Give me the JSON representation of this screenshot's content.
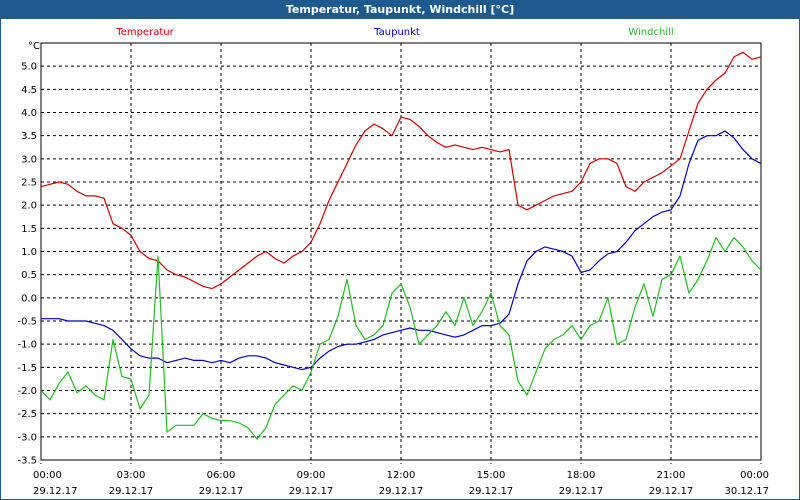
{
  "window": {
    "title": "Temperatur, Taupunkt, Windchill [°C]"
  },
  "chart_data": {
    "type": "line",
    "ylabel": "°C",
    "ylim": [
      -3.5,
      5.5
    ],
    "yticks": [
      "-3.5",
      "-3.0",
      "-2.5",
      "-2.0",
      "-1.5",
      "-1.0",
      "-0.5",
      "0.0",
      "0.5",
      "1.0",
      "1.5",
      "2.0",
      "2.5",
      "3.0",
      "3.5",
      "4.0",
      "4.5",
      "5.0"
    ],
    "xlim": [
      0,
      24
    ],
    "xticks": [
      {
        "time": "00:00",
        "date": "29.12.17"
      },
      {
        "time": "03:00",
        "date": "29.12.17"
      },
      {
        "time": "06:00",
        "date": "29.12.17"
      },
      {
        "time": "09:00",
        "date": "29.12.17"
      },
      {
        "time": "12:00",
        "date": "29.12.17"
      },
      {
        "time": "15:00",
        "date": "29.12.17"
      },
      {
        "time": "18:00",
        "date": "29.12.17"
      },
      {
        "time": "21:00",
        "date": "29.12.17"
      },
      {
        "time": "00:00",
        "date": "30.12.17"
      }
    ],
    "grid": true,
    "series": [
      {
        "name": "Temperatur",
        "color": "#cc0000",
        "x": [
          0,
          0.3,
          0.6,
          0.9,
          1.2,
          1.5,
          1.8,
          2.1,
          2.4,
          2.7,
          3.0,
          3.3,
          3.6,
          3.9,
          4.2,
          4.5,
          4.8,
          5.1,
          5.4,
          5.7,
          6.0,
          6.3,
          6.6,
          6.9,
          7.2,
          7.5,
          7.8,
          8.1,
          8.4,
          8.7,
          9.0,
          9.3,
          9.6,
          9.9,
          10.2,
          10.5,
          10.8,
          11.1,
          11.4,
          11.7,
          12.0,
          12.3,
          12.6,
          12.9,
          13.2,
          13.5,
          13.8,
          14.1,
          14.4,
          14.7,
          15.0,
          15.3,
          15.6,
          15.9,
          16.2,
          16.5,
          16.8,
          17.1,
          17.4,
          17.7,
          18.0,
          18.3,
          18.6,
          18.9,
          19.2,
          19.5,
          19.8,
          20.1,
          20.4,
          20.7,
          21.0,
          21.3,
          21.6,
          21.9,
          22.2,
          22.5,
          22.8,
          23.1,
          23.4,
          23.7,
          24.0
        ],
        "y": [
          2.4,
          2.45,
          2.5,
          2.45,
          2.3,
          2.2,
          2.2,
          2.15,
          1.6,
          1.5,
          1.35,
          1.0,
          0.85,
          0.8,
          0.6,
          0.5,
          0.45,
          0.35,
          0.25,
          0.2,
          0.3,
          0.45,
          0.6,
          0.75,
          0.9,
          1.0,
          0.85,
          0.75,
          0.9,
          1.0,
          1.2,
          1.6,
          2.1,
          2.5,
          2.9,
          3.3,
          3.6,
          3.75,
          3.65,
          3.5,
          3.9,
          3.85,
          3.7,
          3.5,
          3.35,
          3.25,
          3.3,
          3.25,
          3.2,
          3.25,
          3.2,
          3.15,
          3.2,
          2.0,
          1.9,
          2.0,
          2.1,
          2.2,
          2.25,
          2.3,
          2.5,
          2.9,
          3.0,
          3.0,
          2.9,
          2.4,
          2.3,
          2.5,
          2.6,
          2.7,
          2.85,
          3.0,
          3.6,
          4.2,
          4.5,
          4.7,
          4.85,
          5.2,
          5.3,
          5.15,
          5.2
        ]
      },
      {
        "name": "Taupunkt",
        "color": "#0000bb",
        "x": [
          0,
          0.3,
          0.6,
          0.9,
          1.2,
          1.5,
          1.8,
          2.1,
          2.4,
          2.7,
          3.0,
          3.3,
          3.6,
          3.9,
          4.2,
          4.5,
          4.8,
          5.1,
          5.4,
          5.7,
          6.0,
          6.3,
          6.6,
          6.9,
          7.2,
          7.5,
          7.8,
          8.1,
          8.4,
          8.7,
          9.0,
          9.3,
          9.6,
          9.9,
          10.2,
          10.5,
          10.8,
          11.1,
          11.4,
          11.7,
          12.0,
          12.3,
          12.6,
          12.9,
          13.2,
          13.5,
          13.8,
          14.1,
          14.4,
          14.7,
          15.0,
          15.3,
          15.6,
          15.9,
          16.2,
          16.5,
          16.8,
          17.1,
          17.4,
          17.7,
          18.0,
          18.3,
          18.6,
          18.9,
          19.2,
          19.5,
          19.8,
          20.1,
          20.4,
          20.7,
          21.0,
          21.3,
          21.6,
          21.9,
          22.2,
          22.5,
          22.8,
          23.1,
          23.4,
          23.7,
          24.0
        ],
        "y": [
          -0.45,
          -0.45,
          -0.45,
          -0.5,
          -0.5,
          -0.5,
          -0.55,
          -0.6,
          -0.7,
          -0.9,
          -1.1,
          -1.25,
          -1.3,
          -1.3,
          -1.4,
          -1.35,
          -1.3,
          -1.35,
          -1.35,
          -1.4,
          -1.35,
          -1.4,
          -1.3,
          -1.25,
          -1.25,
          -1.3,
          -1.4,
          -1.45,
          -1.5,
          -1.55,
          -1.5,
          -1.3,
          -1.15,
          -1.05,
          -1.0,
          -1.0,
          -0.95,
          -0.9,
          -0.8,
          -0.75,
          -0.7,
          -0.65,
          -0.7,
          -0.7,
          -0.75,
          -0.8,
          -0.85,
          -0.8,
          -0.7,
          -0.6,
          -0.6,
          -0.55,
          -0.35,
          0.3,
          0.8,
          1.0,
          1.1,
          1.05,
          1.0,
          0.9,
          0.55,
          0.6,
          0.8,
          0.95,
          1.0,
          1.2,
          1.45,
          1.6,
          1.75,
          1.85,
          1.9,
          2.2,
          2.9,
          3.4,
          3.5,
          3.5,
          3.6,
          3.45,
          3.2,
          3.0,
          2.9
        ]
      },
      {
        "name": "Windchill",
        "color": "#22bb22",
        "x": [
          0,
          0.3,
          0.6,
          0.9,
          1.2,
          1.5,
          1.8,
          2.1,
          2.4,
          2.7,
          3.0,
          3.3,
          3.6,
          3.9,
          4.2,
          4.5,
          4.8,
          5.1,
          5.4,
          5.7,
          6.0,
          6.3,
          6.6,
          6.9,
          7.2,
          7.5,
          7.8,
          8.1,
          8.4,
          8.7,
          9.0,
          9.3,
          9.6,
          9.9,
          10.2,
          10.5,
          10.8,
          11.1,
          11.4,
          11.7,
          12.0,
          12.3,
          12.6,
          12.9,
          13.2,
          13.5,
          13.8,
          14.1,
          14.4,
          14.7,
          15.0,
          15.3,
          15.6,
          15.9,
          16.2,
          16.5,
          16.8,
          17.1,
          17.4,
          17.7,
          18.0,
          18.3,
          18.6,
          18.9,
          19.2,
          19.5,
          19.8,
          20.1,
          20.4,
          20.7,
          21.0,
          21.3,
          21.6,
          21.9,
          22.2,
          22.5,
          22.8,
          23.1,
          23.4,
          23.7,
          24.0
        ],
        "y": [
          -2.0,
          -2.2,
          -1.85,
          -1.6,
          -2.05,
          -1.9,
          -2.1,
          -2.2,
          -0.9,
          -1.7,
          -1.75,
          -2.4,
          -2.1,
          0.9,
          -2.9,
          -2.75,
          -2.75,
          -2.75,
          -2.5,
          -2.6,
          -2.65,
          -2.65,
          -2.7,
          -2.8,
          -3.05,
          -2.8,
          -2.3,
          -2.1,
          -1.9,
          -2.0,
          -1.6,
          -1.0,
          -0.9,
          -0.4,
          0.4,
          -0.6,
          -0.9,
          -0.8,
          -0.6,
          0.1,
          0.3,
          -0.2,
          -1.0,
          -0.8,
          -0.6,
          -0.3,
          -0.6,
          0.0,
          -0.6,
          -0.3,
          0.1,
          -0.6,
          -0.8,
          -1.8,
          -2.1,
          -1.6,
          -1.1,
          -0.9,
          -0.8,
          -0.6,
          -0.9,
          -0.6,
          -0.5,
          0.0,
          -1.0,
          -0.9,
          -0.2,
          0.3,
          -0.4,
          0.4,
          0.5,
          0.9,
          0.1,
          0.4,
          0.8,
          1.3,
          1.0,
          1.3,
          1.1,
          0.8,
          0.6
        ]
      }
    ]
  }
}
